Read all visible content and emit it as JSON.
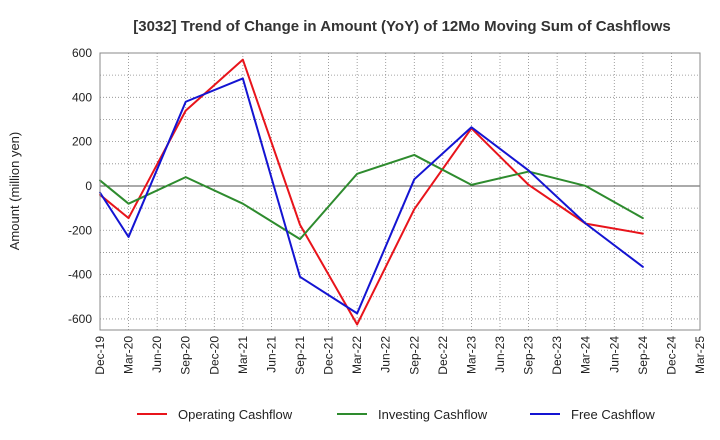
{
  "chart_data": {
    "type": "line",
    "title": "[3032]  Trend of Change in Amount (YoY) of 12Mo Moving Sum of Cashflows",
    "xlabel": "",
    "ylabel": "Amount (million yen)",
    "ylim": [
      -650,
      600
    ],
    "yticks": [
      600,
      400,
      200,
      0,
      -200,
      -400,
      -600
    ],
    "grid": true,
    "legend_position": "bottom",
    "categories": [
      "Dec-19",
      "Mar-20",
      "Jun-20",
      "Sep-20",
      "Dec-20",
      "Mar-21",
      "Jun-21",
      "Sep-21",
      "Dec-21",
      "Mar-22",
      "Jun-22",
      "Sep-22",
      "Dec-22",
      "Mar-23",
      "Jun-23",
      "Sep-23",
      "Dec-23",
      "Mar-24",
      "Jun-24",
      "Sep-24",
      "Dec-24",
      "Mar-25"
    ],
    "series": [
      {
        "name": "Operating Cashflow",
        "color": "#e8141b",
        "values": [
          -40,
          -145,
          null,
          340,
          null,
          570,
          null,
          -175,
          null,
          -625,
          null,
          -105,
          null,
          260,
          null,
          5,
          null,
          -170,
          null,
          -215,
          null,
          null
        ]
      },
      {
        "name": "Investing Cashflow",
        "color": "#2e8b2e",
        "values": [
          25,
          -80,
          null,
          40,
          null,
          -80,
          null,
          -240,
          null,
          55,
          null,
          140,
          null,
          5,
          null,
          65,
          null,
          0,
          null,
          -145,
          null,
          null
        ]
      },
      {
        "name": "Free Cashflow",
        "color": "#1414d2",
        "values": [
          -30,
          -230,
          null,
          380,
          null,
          485,
          null,
          -410,
          null,
          -575,
          null,
          30,
          null,
          265,
          null,
          70,
          null,
          -170,
          null,
          -365,
          null,
          null
        ]
      }
    ]
  }
}
